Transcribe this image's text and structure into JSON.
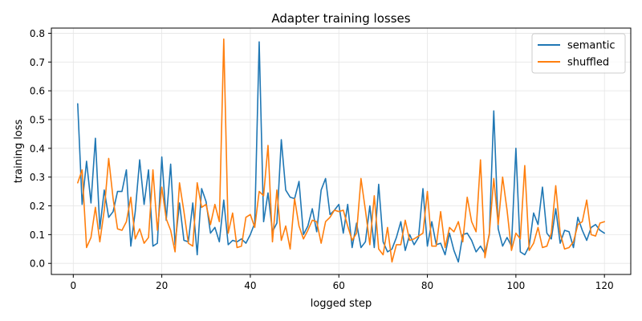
{
  "chart_data": {
    "type": "line",
    "title": "Adapter training losses",
    "xlabel": "logged step",
    "ylabel": "training loss",
    "xlim": [
      -4.95,
      125.95
    ],
    "ylim": [
      -0.0385,
      0.818
    ],
    "xticks": [
      0,
      20,
      40,
      60,
      80,
      100,
      120
    ],
    "yticks": [
      0.0,
      0.1,
      0.2,
      0.3,
      0.4,
      0.5,
      0.6,
      0.7,
      0.8
    ],
    "grid": true,
    "legend_position": "top-right",
    "series": [
      {
        "name": "semantic",
        "color": "#1f77b4",
        "x": [
          1,
          2,
          3,
          4,
          5,
          6,
          7,
          8,
          9,
          10,
          11,
          12,
          13,
          14,
          15,
          16,
          17,
          18,
          19,
          20,
          21,
          22,
          23,
          24,
          25,
          26,
          27,
          28,
          29,
          30,
          31,
          32,
          33,
          34,
          35,
          36,
          37,
          38,
          39,
          40,
          41,
          42,
          43,
          44,
          45,
          46,
          47,
          48,
          49,
          50,
          51,
          52,
          53,
          54,
          55,
          56,
          57,
          58,
          59,
          60,
          61,
          62,
          63,
          64,
          65,
          66,
          67,
          68,
          69,
          70,
          71,
          72,
          73,
          74,
          75,
          76,
          77,
          78,
          79,
          80,
          81,
          82,
          83,
          84,
          85,
          86,
          87,
          88,
          89,
          90,
          91,
          92,
          93,
          94,
          95,
          96,
          97,
          98,
          99,
          100,
          101,
          102,
          103,
          104,
          105,
          106,
          107,
          108,
          109,
          110,
          111,
          112,
          113,
          114,
          115,
          116,
          117,
          118,
          119,
          120
        ],
        "values": [
          0.555,
          0.205,
          0.355,
          0.21,
          0.435,
          0.12,
          0.255,
          0.16,
          0.18,
          0.25,
          0.25,
          0.325,
          0.06,
          0.18,
          0.36,
          0.205,
          0.325,
          0.06,
          0.07,
          0.37,
          0.15,
          0.345,
          0.065,
          0.21,
          0.08,
          0.075,
          0.21,
          0.03,
          0.26,
          0.215,
          0.105,
          0.125,
          0.075,
          0.22,
          0.065,
          0.08,
          0.075,
          0.085,
          0.07,
          0.1,
          0.14,
          0.77,
          0.145,
          0.245,
          0.11,
          0.14,
          0.43,
          0.255,
          0.23,
          0.225,
          0.285,
          0.1,
          0.13,
          0.19,
          0.11,
          0.255,
          0.295,
          0.17,
          0.185,
          0.205,
          0.105,
          0.205,
          0.055,
          0.14,
          0.055,
          0.075,
          0.2,
          0.055,
          0.275,
          0.075,
          0.04,
          0.05,
          0.09,
          0.145,
          0.045,
          0.1,
          0.065,
          0.09,
          0.26,
          0.06,
          0.145,
          0.065,
          0.07,
          0.03,
          0.105,
          0.045,
          0.005,
          0.1,
          0.105,
          0.08,
          0.04,
          0.06,
          0.035,
          0.1,
          0.53,
          0.12,
          0.06,
          0.09,
          0.06,
          0.4,
          0.04,
          0.03,
          0.06,
          0.175,
          0.135,
          0.265,
          0.105,
          0.085,
          0.19,
          0.07,
          0.115,
          0.11,
          0.055,
          0.16,
          0.115,
          0.08,
          0.125,
          0.135,
          0.115,
          0.105
        ]
      },
      {
        "name": "shuffled",
        "color": "#ff7f0e",
        "x": [
          1,
          2,
          3,
          4,
          5,
          6,
          7,
          8,
          9,
          10,
          11,
          12,
          13,
          14,
          15,
          16,
          17,
          18,
          19,
          20,
          21,
          22,
          23,
          24,
          25,
          26,
          27,
          28,
          29,
          30,
          31,
          32,
          33,
          34,
          35,
          36,
          37,
          38,
          39,
          40,
          41,
          42,
          43,
          44,
          45,
          46,
          47,
          48,
          49,
          50,
          51,
          52,
          53,
          54,
          55,
          56,
          57,
          58,
          59,
          60,
          61,
          62,
          63,
          64,
          65,
          66,
          67,
          68,
          69,
          70,
          71,
          72,
          73,
          74,
          75,
          76,
          77,
          78,
          79,
          80,
          81,
          82,
          83,
          84,
          85,
          86,
          87,
          88,
          89,
          90,
          91,
          92,
          93,
          94,
          95,
          96,
          97,
          98,
          99,
          100,
          101,
          102,
          103,
          104,
          105,
          106,
          107,
          108,
          109,
          110,
          111,
          112,
          113,
          114,
          115,
          116,
          117,
          118,
          119,
          120
        ],
        "values": [
          0.28,
          0.325,
          0.055,
          0.09,
          0.195,
          0.075,
          0.185,
          0.365,
          0.225,
          0.12,
          0.115,
          0.145,
          0.23,
          0.085,
          0.12,
          0.07,
          0.09,
          0.325,
          0.115,
          0.265,
          0.155,
          0.115,
          0.04,
          0.28,
          0.18,
          0.07,
          0.06,
          0.28,
          0.195,
          0.205,
          0.135,
          0.205,
          0.145,
          0.78,
          0.105,
          0.175,
          0.055,
          0.06,
          0.16,
          0.17,
          0.125,
          0.25,
          0.235,
          0.41,
          0.075,
          0.255,
          0.08,
          0.13,
          0.05,
          0.225,
          0.13,
          0.085,
          0.115,
          0.15,
          0.145,
          0.07,
          0.145,
          0.16,
          0.185,
          0.18,
          0.185,
          0.13,
          0.08,
          0.105,
          0.295,
          0.185,
          0.065,
          0.235,
          0.05,
          0.03,
          0.125,
          0.005,
          0.065,
          0.065,
          0.15,
          0.08,
          0.085,
          0.095,
          0.105,
          0.25,
          0.06,
          0.06,
          0.18,
          0.055,
          0.125,
          0.11,
          0.145,
          0.075,
          0.23,
          0.145,
          0.11,
          0.36,
          0.02,
          0.105,
          0.295,
          0.135,
          0.3,
          0.185,
          0.045,
          0.105,
          0.085,
          0.34,
          0.045,
          0.07,
          0.125,
          0.055,
          0.06,
          0.105,
          0.27,
          0.105,
          0.05,
          0.055,
          0.075,
          0.135,
          0.145,
          0.22,
          0.1,
          0.095,
          0.14,
          0.145
        ]
      }
    ]
  }
}
